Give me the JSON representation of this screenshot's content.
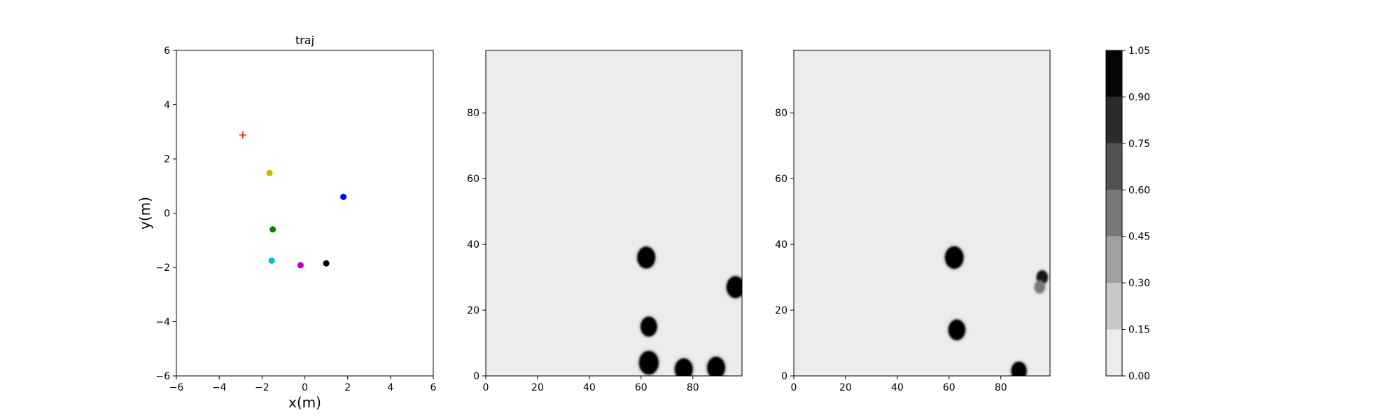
{
  "chart_data": [
    {
      "type": "scatter",
      "title": "traj",
      "xlabel": "x(m)",
      "ylabel": "y(m)",
      "xlim": [
        -6,
        6
      ],
      "ylim": [
        -6,
        6
      ],
      "xticks": [
        "−6",
        "−4",
        "−2",
        "0",
        "2",
        "4",
        "6"
      ],
      "yticks": [
        "−6",
        "−4",
        "−2",
        "0",
        "2",
        "4",
        "6"
      ],
      "grid": false,
      "series": [
        {
          "x": 1.8,
          "y": 0.6,
          "color": "#0000ff",
          "marker": "circle"
        },
        {
          "x": -1.65,
          "y": 1.48,
          "color": "#bfbf00",
          "marker": "circle"
        },
        {
          "x": -1.5,
          "y": -0.6,
          "color": "#008000",
          "marker": "circle"
        },
        {
          "x": -1.55,
          "y": -1.75,
          "color": "#00bfbf",
          "marker": "circle"
        },
        {
          "x": -0.2,
          "y": -1.92,
          "color": "#bf00bf",
          "marker": "circle"
        },
        {
          "x": 1.0,
          "y": -1.85,
          "color": "#000000",
          "marker": "circle"
        },
        {
          "x": -2.9,
          "y": 2.88,
          "color": "#ff0000",
          "marker": "plus"
        }
      ]
    },
    {
      "type": "heatmap",
      "xlim": [
        0,
        99
      ],
      "ylim": [
        0,
        99
      ],
      "xticks": [
        "0",
        "20",
        "40",
        "60",
        "80"
      ],
      "yticks": [
        "0",
        "20",
        "40",
        "60",
        "80"
      ],
      "background_value": 0.05,
      "blobs": [
        {
          "x": 62,
          "y": 36,
          "r": 3.5,
          "value": 1.0
        },
        {
          "x": 63,
          "y": 15,
          "r": 3.2,
          "value": 1.0
        },
        {
          "x": 63,
          "y": 4,
          "r": 3.8,
          "value": 1.0
        },
        {
          "x": 76.5,
          "y": 2,
          "r": 3.5,
          "value": 1.0
        },
        {
          "x": 89,
          "y": 2.5,
          "r": 3.5,
          "value": 1.0
        },
        {
          "x": 96.5,
          "y": 27,
          "r": 3.5,
          "value": 1.0
        }
      ]
    },
    {
      "type": "heatmap",
      "xlim": [
        0,
        99
      ],
      "ylim": [
        0,
        99
      ],
      "xticks": [
        "0",
        "20",
        "40",
        "60",
        "80"
      ],
      "yticks": [
        "0",
        "20",
        "40",
        "60",
        "80"
      ],
      "background_value": 0.05,
      "blobs": [
        {
          "x": 62,
          "y": 36,
          "r": 3.6,
          "value": 1.0
        },
        {
          "x": 63,
          "y": 14,
          "r": 3.3,
          "value": 1.0
        },
        {
          "x": 87,
          "y": 1.5,
          "r": 3.0,
          "value": 1.0
        },
        {
          "x": 96,
          "y": 30,
          "r": 2.2,
          "value": 0.95
        },
        {
          "x": 95,
          "y": 27,
          "r": 2.0,
          "value": 0.5
        }
      ]
    },
    {
      "type": "colorbar",
      "levels": [
        0.0,
        0.15,
        0.3,
        0.45,
        0.6,
        0.75,
        0.9,
        1.05
      ],
      "labels": [
        "0.00",
        "0.15",
        "0.30",
        "0.45",
        "0.60",
        "0.75",
        "0.90",
        "1.05"
      ],
      "colors": [
        "#ececec",
        "#c8c8c8",
        "#a0a0a0",
        "#787878",
        "#525252",
        "#2b2b2b",
        "#060606"
      ]
    }
  ]
}
